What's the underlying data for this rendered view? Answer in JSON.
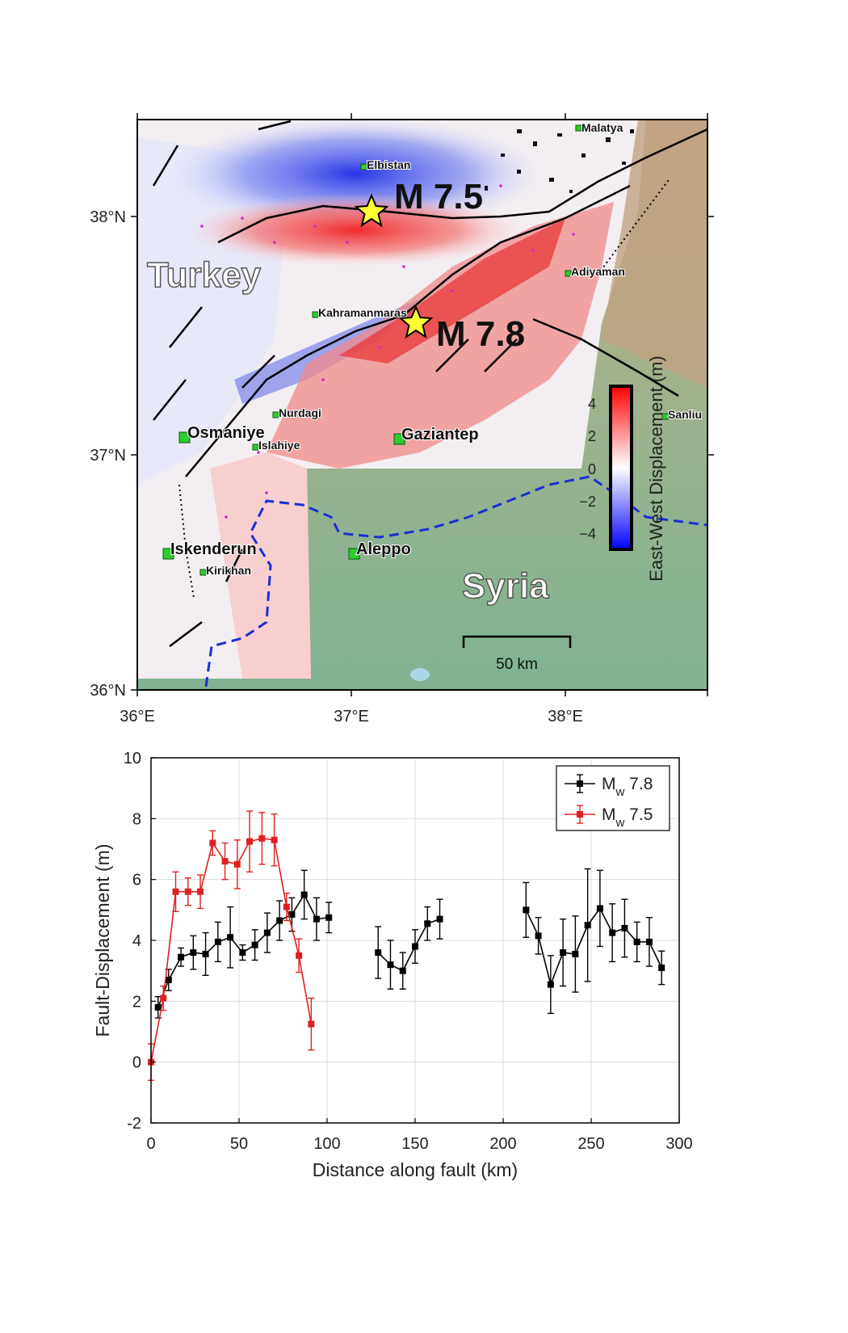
{
  "map": {
    "country_turkey": "Turkey",
    "country_syria": "Syria",
    "lon_ticks": [
      "36°E",
      "37°E",
      "38°E"
    ],
    "lat_ticks": [
      "38°N",
      "37°N",
      "36°N"
    ],
    "quake_1": "M 7.5",
    "quake_2": "M 7.8",
    "scale_bar": "50 km",
    "colorbar": {
      "label": "East-West Displacement (m)",
      "ticks": [
        "4",
        "2",
        "0",
        "−2",
        "−4"
      ]
    },
    "cities": {
      "malatya": "Malatya",
      "elbistan": "Elbistan",
      "adiyaman": "Adiyaman",
      "kahramanmaras": "Kahramanmaras",
      "nurdagi": "Nurdagi",
      "islahiye": "Islahiye",
      "osmaniye": "Osmaniye",
      "gaziantep": "Gaziantep",
      "sanliu": "Sanliu",
      "iskenderun": "Iskenderun",
      "kirikhan": "Kirikhan",
      "aleppo": "Aleppo"
    },
    "colors": {
      "positive": "#e02020",
      "negative": "#2030e0",
      "terrain": "#8fb88a",
      "sea": "#a8d8e4",
      "border": "#1a2fd6"
    }
  },
  "chart_data": {
    "type": "scatter",
    "xlabel": "Distance along fault (km)",
    "ylabel": "Fault-Displacement (m)",
    "xlim": [
      0,
      300
    ],
    "ylim": [
      -2,
      10
    ],
    "xticks": [
      0,
      50,
      100,
      150,
      200,
      250,
      300
    ],
    "yticks": [
      -2,
      0,
      2,
      4,
      6,
      8,
      10
    ],
    "grid": true,
    "legend_position": "top-right",
    "legend_sub": "w",
    "series": [
      {
        "name": "M",
        "name_suffix": "7.8",
        "color": "#000000",
        "segments": [
          {
            "x": [
              4,
              10,
              17,
              24,
              31,
              38,
              45,
              52,
              59,
              66,
              73,
              80,
              87,
              94,
              101
            ],
            "y": [
              1.8,
              2.7,
              3.45,
              3.6,
              3.55,
              3.95,
              4.1,
              3.6,
              3.85,
              4.25,
              4.65,
              4.85,
              5.5,
              4.7,
              4.75
            ],
            "err": [
              0.35,
              0.35,
              0.3,
              0.55,
              0.7,
              0.65,
              1.0,
              0.25,
              0.5,
              0.65,
              0.65,
              0.55,
              0.8,
              0.7,
              0.5
            ]
          },
          {
            "x": [
              129,
              136,
              143,
              150,
              157,
              164
            ],
            "y": [
              3.6,
              3.2,
              3.0,
              3.8,
              4.55,
              4.7
            ],
            "err": [
              0.85,
              0.8,
              0.6,
              0.55,
              0.55,
              0.65
            ]
          },
          {
            "x": [
              213,
              220,
              227,
              234,
              241,
              248,
              255,
              262,
              269,
              276,
              283,
              290
            ],
            "y": [
              5.0,
              4.15,
              2.55,
              3.6,
              3.55,
              4.5,
              5.05,
              4.25,
              4.4,
              3.95,
              3.95,
              3.1
            ],
            "err": [
              0.9,
              0.6,
              0.95,
              1.1,
              1.25,
              1.85,
              1.25,
              0.95,
              0.95,
              0.65,
              0.8,
              0.55
            ]
          }
        ]
      },
      {
        "name": "M",
        "name_suffix": "7.5",
        "color": "#e02020",
        "segments": [
          {
            "x": [
              0,
              7,
              14,
              21,
              28,
              35,
              42,
              49,
              56,
              63,
              70,
              77,
              84,
              91
            ],
            "y": [
              0.0,
              2.1,
              5.6,
              5.6,
              5.6,
              7.2,
              6.6,
              6.5,
              7.25,
              7.35,
              7.3,
              5.1,
              3.5,
              1.25
            ],
            "err": [
              0.6,
              0.4,
              0.65,
              0.45,
              0.55,
              0.4,
              0.6,
              0.8,
              1.0,
              0.85,
              0.85,
              0.45,
              0.55,
              0.85
            ]
          }
        ]
      }
    ]
  }
}
